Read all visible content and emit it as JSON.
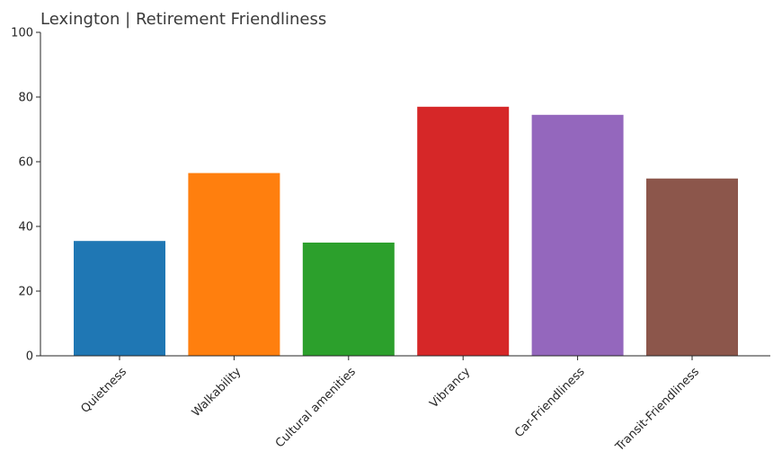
{
  "chart_data": {
    "type": "bar",
    "title": "Lexington | Retirement Friendliness",
    "xlabel": "",
    "ylabel": "",
    "categories": [
      "Quietness",
      "Walkability",
      "Cultural amenities",
      "Vibrancy",
      "Car-Friendliness",
      "Transit-Friendliness"
    ],
    "values": [
      35.5,
      56.5,
      35,
      77,
      74.5,
      54.8
    ],
    "colors": [
      "#1f77b4",
      "#ff7f0e",
      "#2ca02c",
      "#d62728",
      "#9467bd",
      "#8c564b"
    ],
    "ylim": [
      0,
      100
    ],
    "yticks": [
      0,
      20,
      40,
      60,
      80,
      100
    ],
    "grid": false,
    "legend": "none"
  }
}
